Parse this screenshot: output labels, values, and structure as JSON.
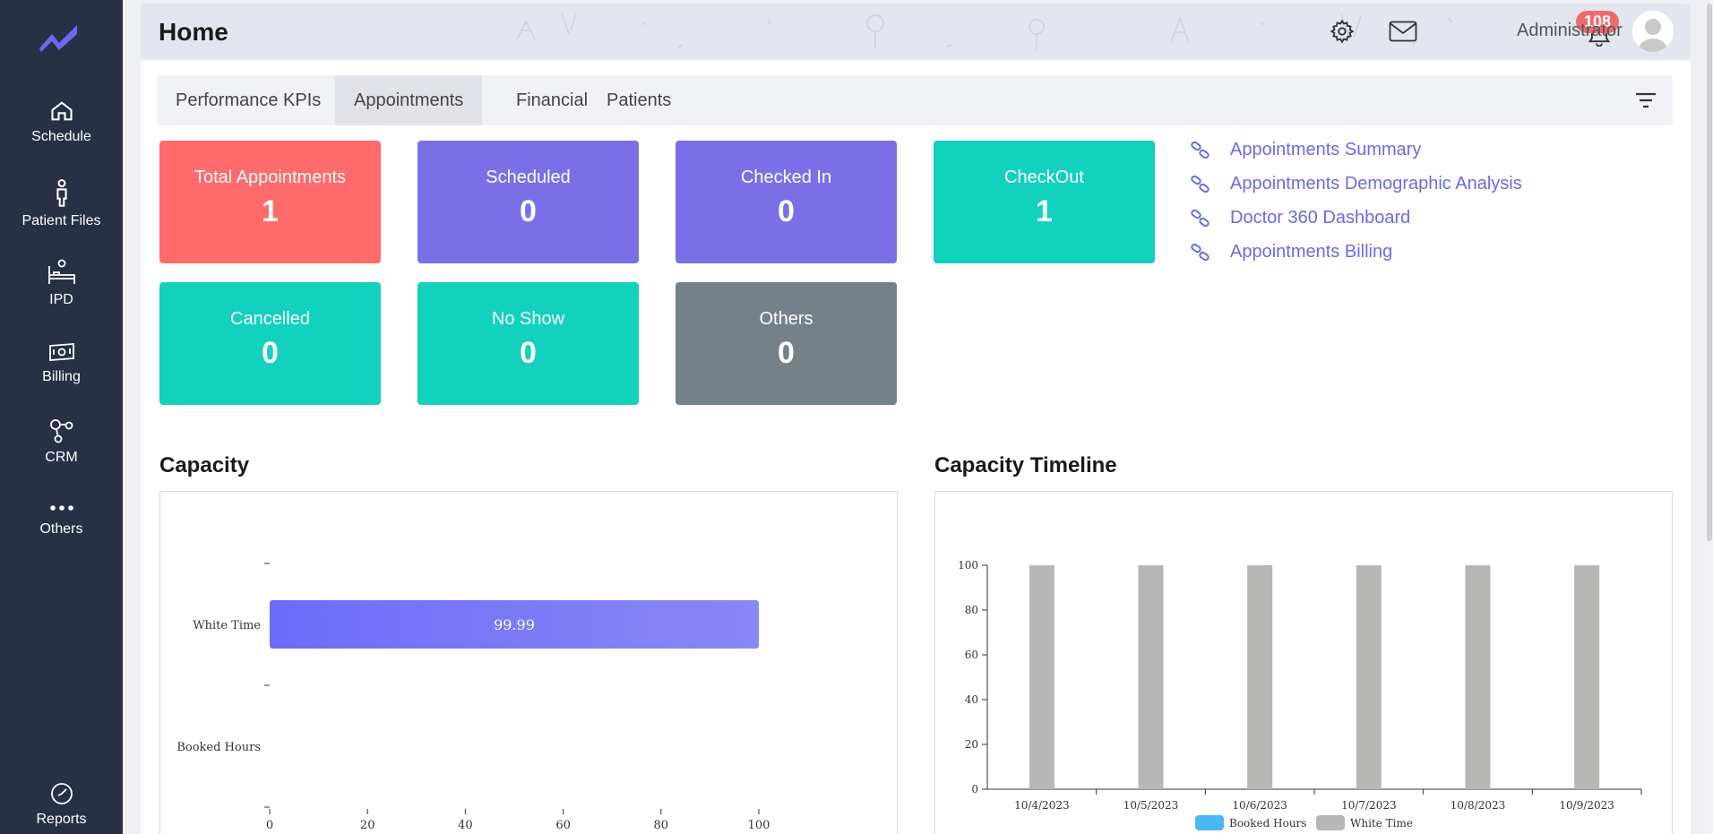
{
  "sidebar": {
    "items": [
      {
        "label": "Schedule",
        "icon": "home-icon"
      },
      {
        "label": "Patient Files",
        "icon": "person-icon"
      },
      {
        "label": "IPD",
        "icon": "bed-icon"
      },
      {
        "label": "Billing",
        "icon": "money-icon"
      },
      {
        "label": "CRM",
        "icon": "network-icon"
      },
      {
        "label": "Others",
        "icon": "more-dots-icon"
      }
    ],
    "reports": {
      "label": "Reports",
      "icon": "gauge-icon"
    }
  },
  "header": {
    "title": "Home",
    "notification_count": "108",
    "user_name": "Administrator"
  },
  "tabs": [
    {
      "label": "Performance KPIs",
      "active": false
    },
    {
      "label": "Appointments",
      "active": true
    },
    {
      "label": "Financial",
      "active": false
    },
    {
      "label": "Patients",
      "active": false
    }
  ],
  "cards": [
    {
      "label": "Total Appointments",
      "value": "1",
      "color": "#ff6b6b"
    },
    {
      "label": "Scheduled",
      "value": "0",
      "color": "#7b6fe8"
    },
    {
      "label": "Checked In",
      "value": "0",
      "color": "#7b6fe8"
    },
    {
      "label": "CheckOut",
      "value": "1",
      "color": "#12d1bd"
    },
    {
      "label": "Cancelled",
      "value": "0",
      "color": "#12d1bd"
    },
    {
      "label": "No Show",
      "value": "0",
      "color": "#12d1bd"
    },
    {
      "label": "Others",
      "value": "0",
      "color": "#758189"
    }
  ],
  "links": [
    "Appointments Summary",
    "Appointments Demographic Analysis",
    "Doctor 360 Dashboard",
    "Appointments Billing"
  ],
  "sections": {
    "capacity": "Capacity",
    "timeline": "Capacity Timeline"
  },
  "chart_data": [
    {
      "type": "bar",
      "orientation": "horizontal",
      "categories": [
        "White Time",
        "Booked Hours"
      ],
      "values": [
        99.99,
        0
      ],
      "data_labels": [
        "99.99",
        ""
      ],
      "xlim": [
        0,
        100
      ],
      "xticks": [
        "0",
        "20",
        "40",
        "60",
        "80",
        "100"
      ],
      "bar_color": "#6c6cf8"
    },
    {
      "type": "bar",
      "categories": [
        "10/4/2023",
        "10/5/2023",
        "10/6/2023",
        "10/7/2023",
        "10/8/2023",
        "10/9/2023"
      ],
      "series": [
        {
          "name": "Booked Hours",
          "values": [
            0,
            0,
            0,
            0,
            0,
            0
          ],
          "color": "#4db6f5"
        },
        {
          "name": "White Time",
          "values": [
            100,
            100,
            100,
            100,
            100,
            100
          ],
          "color": "#b7b7b5"
        }
      ],
      "ylim": [
        0,
        100
      ],
      "yticks": [
        "0",
        "20",
        "40",
        "60",
        "80",
        "100"
      ],
      "legend": "bottom"
    }
  ]
}
